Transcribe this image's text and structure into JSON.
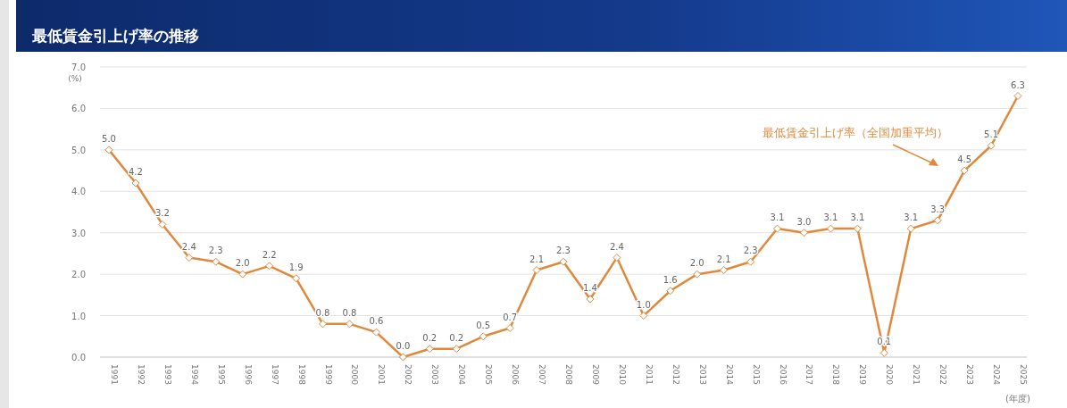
{
  "chart_data": {
    "type": "line",
    "title": "最低賃金引上げ率の推移",
    "ylabel": "(%)",
    "xlabel": "(年度)",
    "annotations": [
      "最低賃金引上げ率（全国加重平均）"
    ],
    "categories": [
      "1991",
      "1992",
      "1993",
      "1994",
      "1995",
      "1996",
      "1997",
      "1998",
      "1999",
      "2000",
      "2001",
      "2002",
      "2003",
      "2004",
      "2005",
      "2006",
      "2007",
      "2008",
      "2009",
      "2010",
      "2011",
      "2012",
      "2013",
      "2014",
      "2015",
      "2016",
      "2017",
      "2018",
      "2019",
      "2020",
      "2021",
      "2022",
      "2023",
      "2024",
      "2025"
    ],
    "series": [
      {
        "color": "#e0893c",
        "values": [
          5.0,
          4.2,
          3.2,
          2.4,
          2.3,
          2.0,
          2.2,
          1.9,
          0.8,
          0.8,
          0.6,
          0.0,
          0.2,
          0.2,
          0.5,
          0.7,
          2.1,
          2.3,
          1.4,
          2.4,
          1.0,
          1.6,
          2.0,
          2.1,
          2.3,
          3.1,
          3.0,
          3.1,
          3.1,
          0.1,
          3.1,
          3.3,
          4.5,
          5.1,
          6.3
        ],
        "value_labels": [
          "5.0",
          "4.2",
          "3.2",
          "2.4",
          "2.3",
          "2.0",
          "2.2",
          "1.9",
          "0.8",
          "0.8",
          "0.6",
          "0.0",
          "0.2",
          "0.2",
          "0.5",
          "0.7",
          "2.1",
          "2.3",
          "1.4",
          "2.4",
          "1.0",
          "1.6",
          "2.0",
          "2.1",
          "2.3",
          "3.1",
          "3.0",
          "3.1",
          "3.1",
          "0.1",
          "3.1",
          "3.3",
          "4.5",
          "5.1",
          "6.3"
        ]
      }
    ],
    "ylim": [
      0,
      7
    ],
    "yticks": [
      {
        "value": 0,
        "label": "0.0"
      },
      {
        "value": 1,
        "label": "1.0"
      },
      {
        "value": 2,
        "label": "2.0"
      },
      {
        "value": 3,
        "label": "3.0"
      },
      {
        "value": 4,
        "label": "4.0"
      },
      {
        "value": 5,
        "label": "5.0"
      },
      {
        "value": 6,
        "label": "6.0"
      },
      {
        "value": 7,
        "label": "7.0"
      }
    ],
    "grid": "y",
    "marker": "diamond",
    "line_style": "solid"
  }
}
